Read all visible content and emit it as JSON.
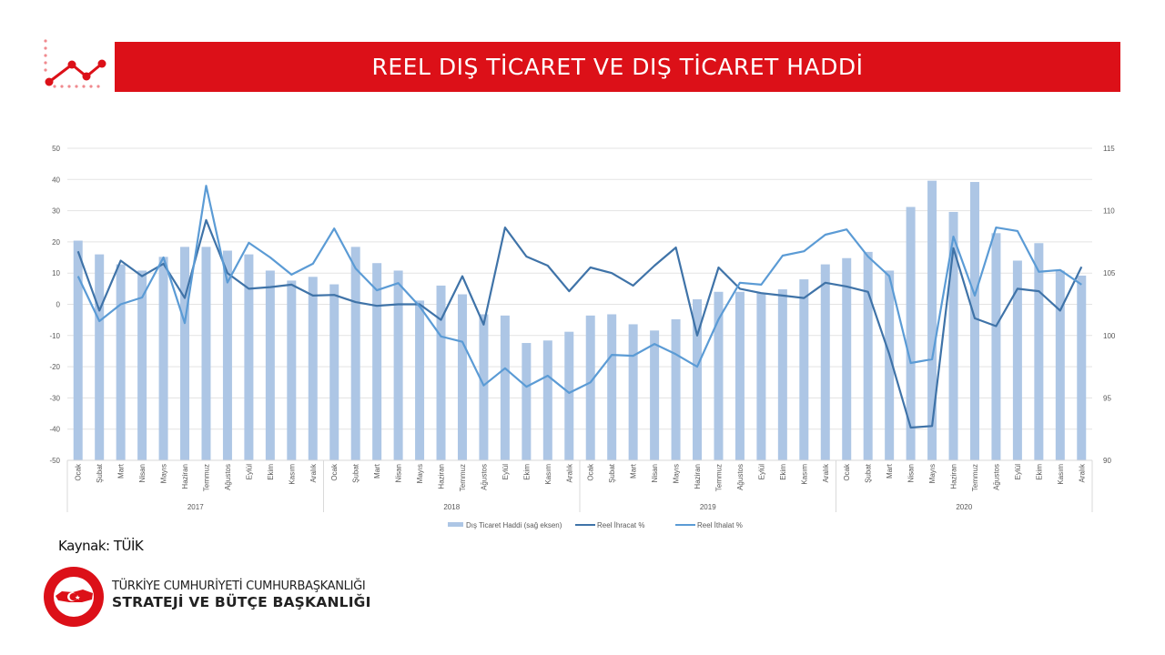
{
  "header": {
    "title": "REEL DIŞ TİCARET VE DIŞ TİCARET HADDİ",
    "accent": "#dc1018"
  },
  "footer": {
    "source": "Kaynak: TÜİK",
    "org_line1": "TÜRKİYE CUMHURİYETİ CUMHURBAŞKANLIĞI",
    "org_line2": "STRATEJİ VE BÜTÇE BAŞKANLIĞI",
    "logo_text": "T.C. CUMHURBAŞKANLIĞI STRATEJİ VE BÜTÇE BAŞKANLIĞI"
  },
  "chart_data": {
    "type": "bar+line",
    "title": "",
    "years": [
      "2017",
      "2018",
      "2019",
      "2020"
    ],
    "months": [
      "Ocak",
      "Şubat",
      "Mart",
      "Nisan",
      "Mayıs",
      "Haziran",
      "Temmuz",
      "Ağustos",
      "Eylül",
      "Ekim",
      "Kasım",
      "Aralık"
    ],
    "left_axis": {
      "range": [
        -50,
        50
      ],
      "ticks": [
        "50",
        "40",
        "30",
        "20",
        "10",
        "0",
        "-10",
        "-20",
        "-30",
        "-40",
        "-50"
      ]
    },
    "right_axis": {
      "range": [
        90,
        115
      ],
      "ticks": [
        "115",
        "110",
        "105",
        "100",
        "95",
        "90"
      ]
    },
    "grid": true,
    "legend_position": "bottom",
    "series": [
      {
        "name": "Dış Ticaret Haddi (sağ eksen)",
        "type": "bar",
        "axis": "right",
        "color": "#adc6e5",
        "values": [
          107.6,
          106.5,
          105.7,
          105.2,
          106.3,
          107.1,
          107.1,
          106.8,
          106.5,
          105.2,
          104.4,
          104.7,
          104.1,
          107.1,
          105.8,
          105.2,
          102.8,
          104.0,
          103.3,
          101.7,
          101.6,
          99.4,
          99.6,
          100.3,
          101.6,
          101.7,
          100.9,
          100.4,
          101.3,
          102.9,
          103.5,
          103.5,
          103.4,
          103.7,
          104.5,
          105.7,
          106.2,
          106.7,
          105.2,
          110.3,
          112.4,
          109.9,
          112.3,
          108.2,
          106.0,
          107.4,
          105.2,
          104.8
        ]
      },
      {
        "name": "Reel İhracat %",
        "type": "line",
        "axis": "left",
        "color": "#3f73a8",
        "values": [
          17,
          -2,
          14,
          9,
          13,
          2,
          27,
          10,
          5,
          5.5,
          6.3,
          2.8,
          3,
          0.7,
          -0.5,
          0,
          0,
          -5,
          9,
          -6.5,
          24.6,
          15.3,
          12.4,
          4.2,
          11.8,
          10,
          6,
          12.4,
          18.2,
          -10,
          11.8,
          5,
          3.6,
          2.8,
          2,
          6.9,
          5.7,
          4,
          -16,
          -39.5,
          -39,
          18,
          -4.5,
          -7,
          5,
          4.2,
          -2,
          12
        ]
      },
      {
        "name": "Reel İthalat %",
        "type": "line",
        "axis": "left",
        "color": "#5b9bd5",
        "values": [
          9,
          -5.4,
          0,
          2.2,
          15,
          -6,
          38,
          7,
          19.7,
          15,
          9.5,
          13,
          24.3,
          11.5,
          4.5,
          6.8,
          -0.7,
          -10.3,
          -12,
          -26,
          -20.5,
          -26.4,
          -22.9,
          -28.4,
          -25,
          -16.2,
          -16.5,
          -12.7,
          -16,
          -20,
          -4.8,
          6.9,
          6.3,
          15.6,
          17,
          22.3,
          24,
          15.3,
          9,
          -18.8,
          -17.6,
          21.7,
          2.8,
          24.6,
          23.5,
          10.4,
          11,
          6.3
        ]
      }
    ]
  }
}
